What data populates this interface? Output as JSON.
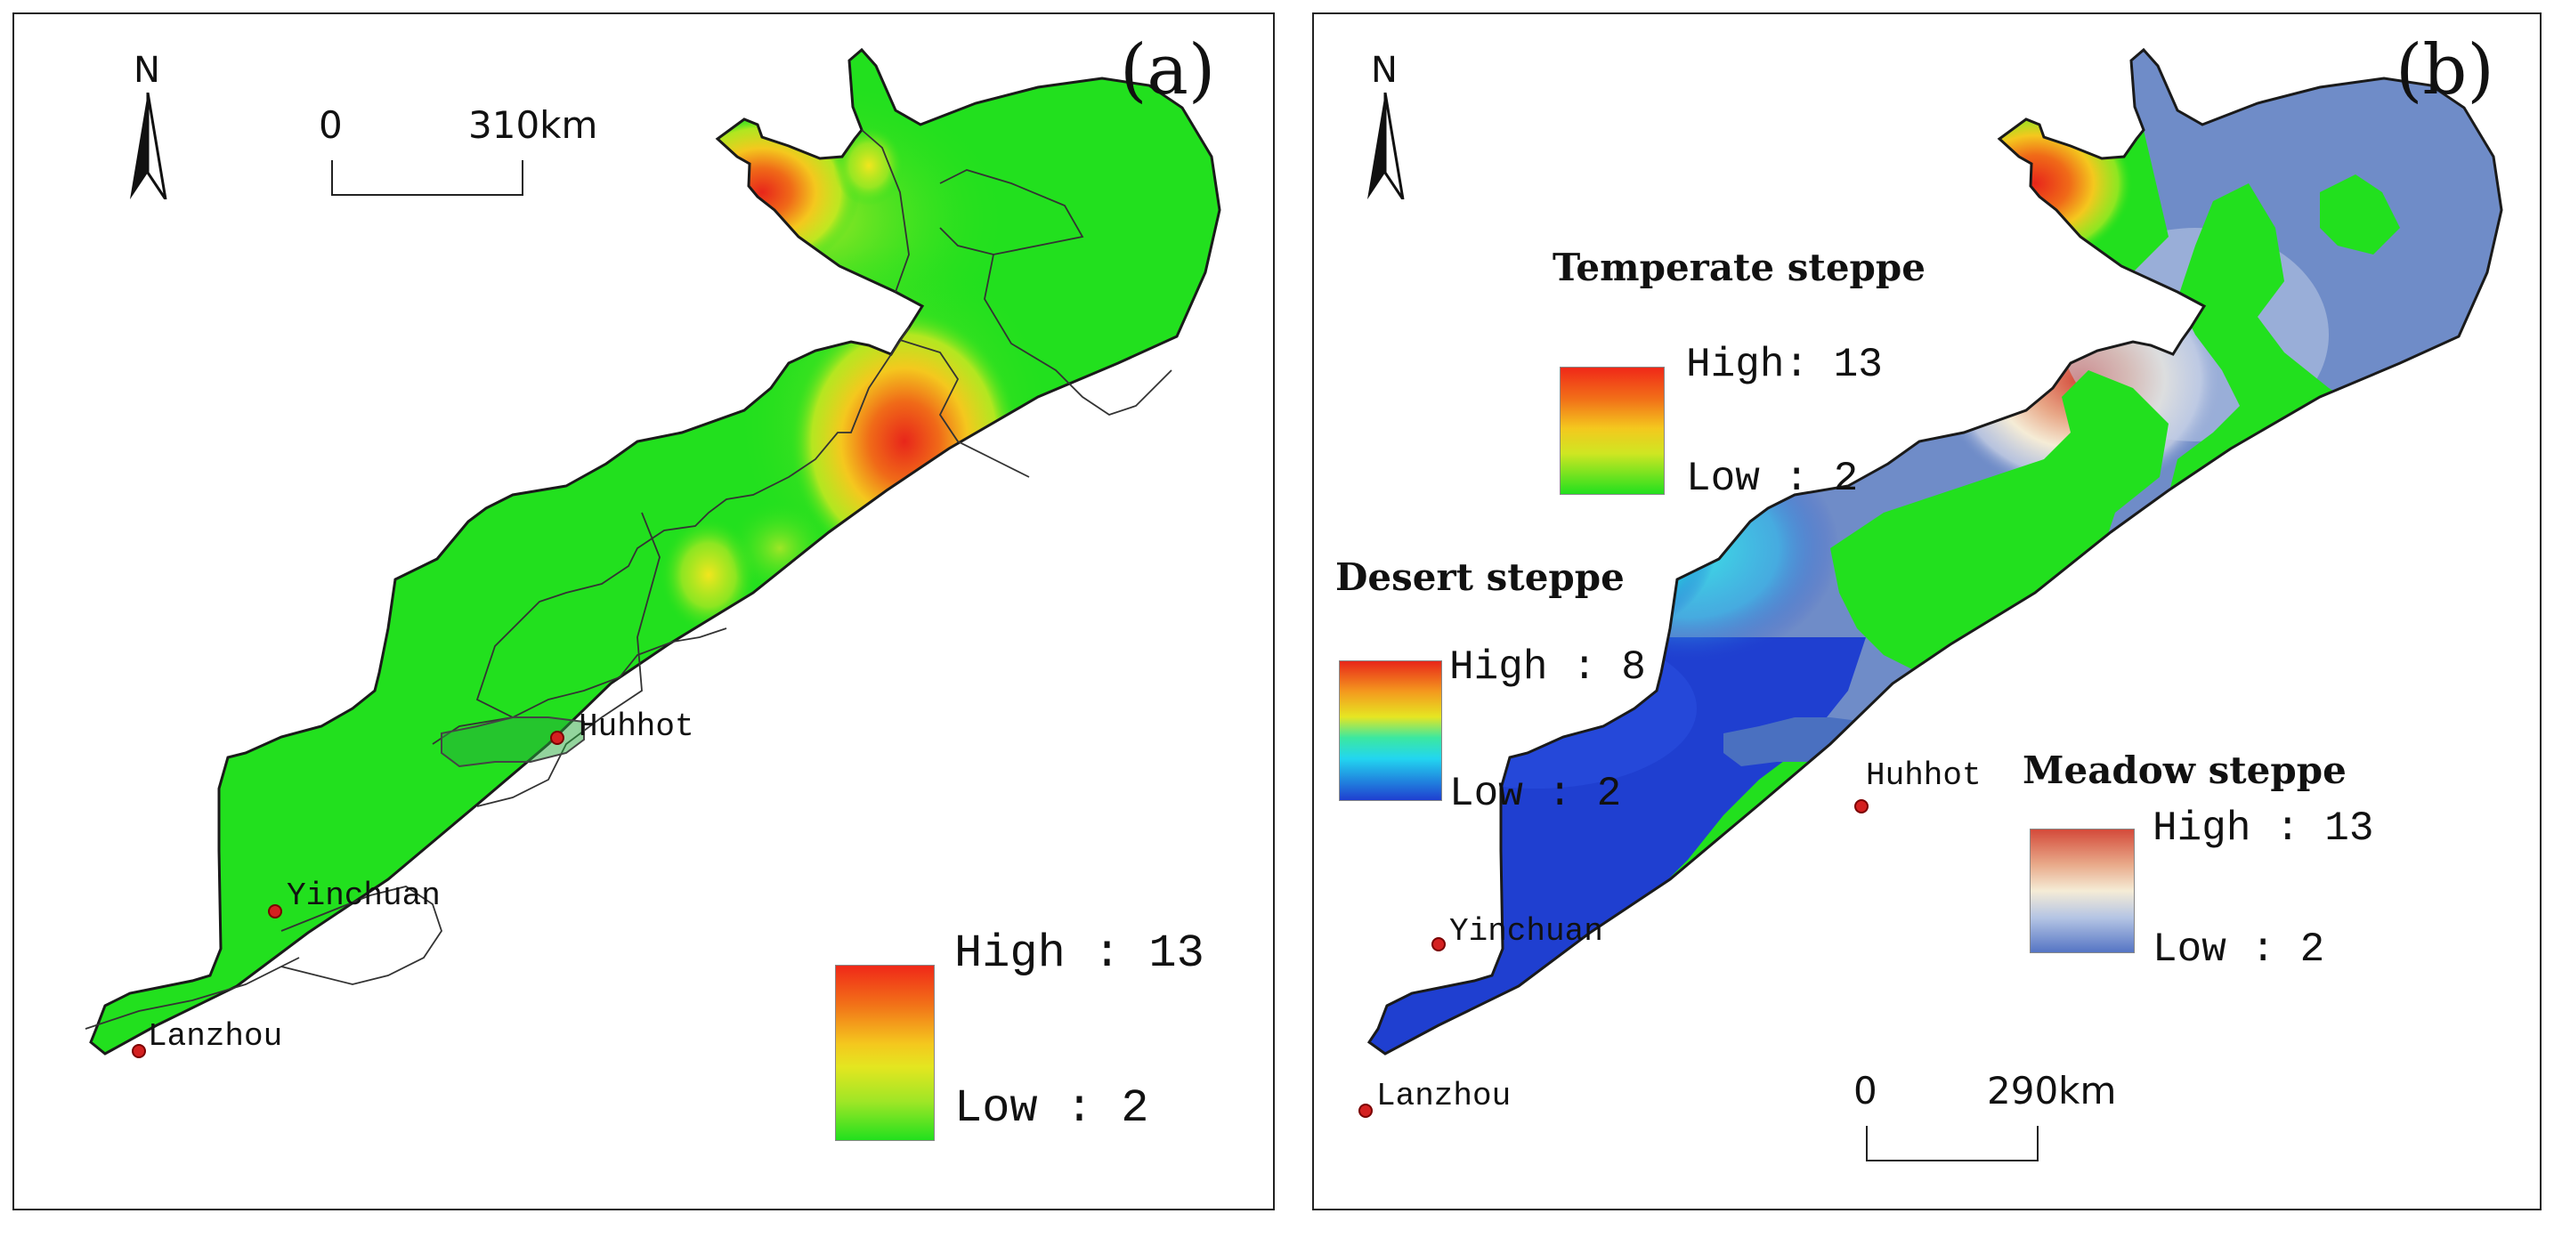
{
  "panels": {
    "a": {
      "tag": "(a)",
      "north_label": "N",
      "scale": {
        "start": "0",
        "end": "310km"
      },
      "legend": {
        "high": "High : 13",
        "low": "Low : 2"
      }
    },
    "b": {
      "tag": "(b)",
      "north_label": "N",
      "scale": {
        "start": "0",
        "end": "290km"
      },
      "legends": {
        "temperate": {
          "title": "Temperate steppe",
          "high": "High: 13",
          "low": "Low : 2"
        },
        "desert": {
          "title": "Desert steppe",
          "high": "High : 8",
          "low": "Low : 2"
        },
        "meadow": {
          "title": "Meadow steppe",
          "high": "High : 13",
          "low": "Low : 2"
        }
      }
    }
  },
  "cities": {
    "huhhot": "Huhhot",
    "yinchuan": "Yinchuan",
    "lanzhou": "Lanzhou"
  },
  "colors": {
    "base_green": "#22e01e",
    "hot_red": "#e8261a",
    "desert_blue": "#1f3fd0",
    "meadow_blue": "#6f8cc8",
    "outline": "#1a1a1a",
    "city_dot": "#d42020"
  },
  "icons": [
    "north-arrow-icon",
    "city-marker-icon"
  ]
}
